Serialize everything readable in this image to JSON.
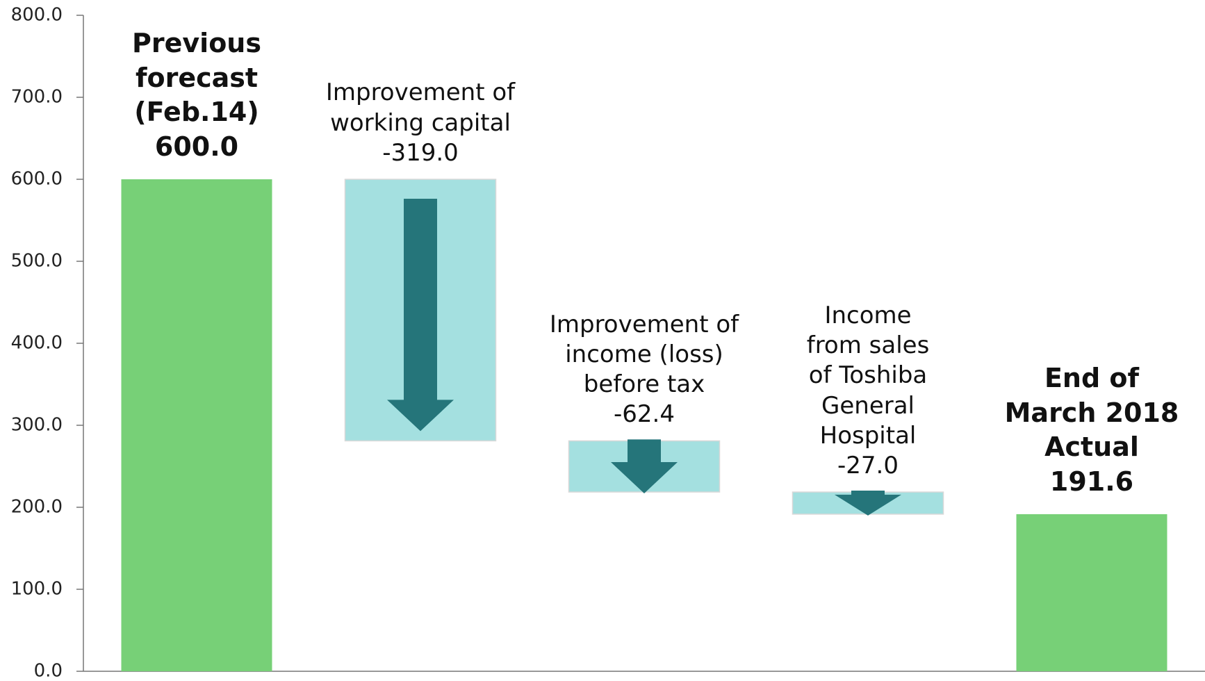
{
  "chart_data": {
    "type": "waterfall",
    "categories": [
      "Previous forecast (Feb.14)",
      "Improvement of working capital",
      "Improvement of income (loss) before tax",
      "Income from sales of Toshiba General Hospital",
      "End of March 2018 Actual"
    ],
    "values": [
      600,
      -319,
      -62.4,
      -27,
      191.6
    ],
    "value_labels": [
      "600.0",
      "-319.0",
      "-62.4",
      "-27.0",
      "191.6"
    ],
    "color": "#77d077",
    "change_color": "#a4e0e0",
    "arrow_color": "#25757a",
    "ylim": [
      0,
      800
    ],
    "yticks": [
      {
        "value": 0,
        "label": "0.0"
      },
      {
        "value": 100,
        "label": "100.0"
      },
      {
        "value": 200,
        "label": "200.0"
      },
      {
        "value": 300,
        "label": "300.0"
      },
      {
        "value": 400,
        "label": "400.0"
      },
      {
        "value": 500,
        "label": "500.0"
      },
      {
        "value": 600,
        "label": "600.0"
      },
      {
        "value": 700,
        "label": "700.0"
      },
      {
        "value": 800,
        "label": "800.0"
      }
    ]
  }
}
